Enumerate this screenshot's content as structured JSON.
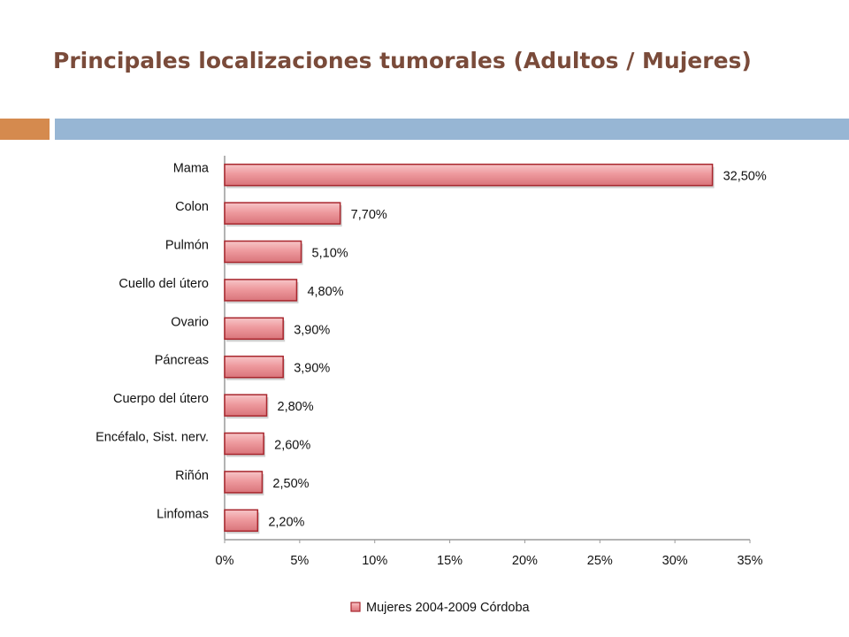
{
  "slide": {
    "title": "Principales localizaciones tumorales (Adultos / Mujeres)"
  },
  "colors": {
    "title": "#7a4b3a",
    "accent_orange": "#d58a4e",
    "accent_blue": "#97b6d4",
    "bar_fill": "#ee9a9e",
    "bar_border": "#a8262d"
  },
  "chart_data": {
    "type": "bar",
    "orientation": "horizontal",
    "categories": [
      "Mama",
      "Colon",
      "Pulmón",
      "Cuello del útero",
      "Ovario",
      "Páncreas",
      "Cuerpo del útero",
      "Encéfalo, Sist. nerv.",
      "Riñón",
      "Linfomas"
    ],
    "series": [
      {
        "name": "Mujeres 2004-2009 Córdoba",
        "values": [
          32.5,
          7.7,
          5.1,
          4.8,
          3.9,
          3.9,
          2.8,
          2.6,
          2.5,
          2.2
        ],
        "data_labels": [
          "32,50%",
          "7,70%",
          "5,10%",
          "4,80%",
          "3,90%",
          "3,90%",
          "2,80%",
          "2,60%",
          "2,50%",
          "2,20%"
        ]
      }
    ],
    "x_ticks": [
      "0%",
      "5%",
      "10%",
      "15%",
      "20%",
      "25%",
      "30%",
      "35%"
    ],
    "xlim": [
      0,
      35
    ],
    "grid": false,
    "legend_position": "bottom"
  }
}
